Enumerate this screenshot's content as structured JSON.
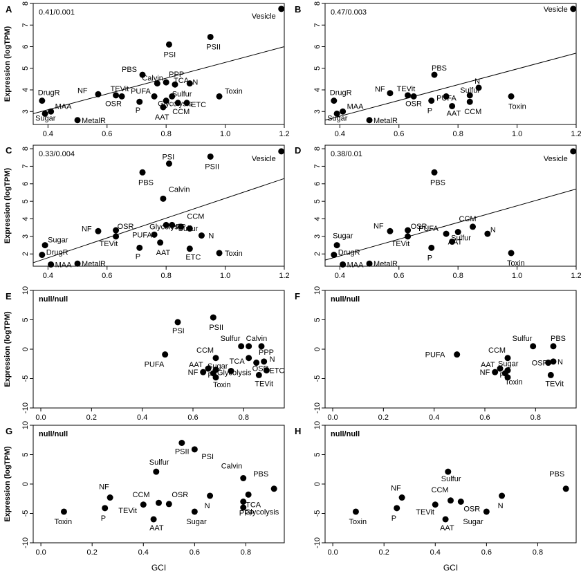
{
  "chart_data": [
    {
      "panel": "A",
      "type": "scatter",
      "annotation": "0.41/0.001",
      "ylabel": "Expression (logTPM)",
      "xlabel": "",
      "xlim": [
        0.35,
        1.2
      ],
      "ylim": [
        2.4,
        8
      ],
      "xticks": [
        0.4,
        0.6,
        0.8,
        1.0,
        1.2
      ],
      "xtick_labels": [
        "0.4",
        "0.6",
        "0.8",
        "1.0",
        "1.2"
      ],
      "yticks": [
        3,
        4,
        5,
        6,
        7,
        8
      ],
      "ytick_labels": [
        "3",
        "4",
        "5",
        "6",
        "7",
        "8"
      ],
      "fit_line": [
        [
          0.35,
          2.9
        ],
        [
          1.2,
          6.0
        ]
      ],
      "points": [
        {
          "label": "Vesicle",
          "x": 1.19,
          "y": 7.75
        },
        {
          "label": "PSI",
          "x": 0.81,
          "y": 6.1
        },
        {
          "label": "PSII",
          "x": 0.95,
          "y": 6.45
        },
        {
          "label": "PBS",
          "x": 0.72,
          "y": 4.7
        },
        {
          "label": "Calvin",
          "x": 0.77,
          "y": 4.3
        },
        {
          "label": "PPP",
          "x": 0.8,
          "y": 4.35
        },
        {
          "label": "TCA",
          "x": 0.83,
          "y": 4.25
        },
        {
          "label": "N",
          "x": 0.88,
          "y": 4.3
        },
        {
          "label": "Toxin",
          "x": 0.98,
          "y": 3.7
        },
        {
          "label": "PUFA",
          "x": 0.76,
          "y": 3.7
        },
        {
          "label": "Sulfur",
          "x": 0.82,
          "y": 3.7
        },
        {
          "label": "ETC",
          "x": 0.87,
          "y": 3.4
        },
        {
          "label": "CCM",
          "x": 0.84,
          "y": 3.4
        },
        {
          "label": "AAT",
          "x": 0.79,
          "y": 3.2
        },
        {
          "label": "Glycolysis",
          "x": 0.8,
          "y": 3.5
        },
        {
          "label": "P",
          "x": 0.71,
          "y": 3.45
        },
        {
          "label": "OSR",
          "x": 0.65,
          "y": 3.7
        },
        {
          "label": "TEVit",
          "x": 0.63,
          "y": 3.75
        },
        {
          "label": "NF",
          "x": 0.57,
          "y": 3.8
        },
        {
          "label": "DrugR",
          "x": 0.38,
          "y": 3.5
        },
        {
          "label": "MAA",
          "x": 0.41,
          "y": 3.0
        },
        {
          "label": "Sugar",
          "x": 0.39,
          "y": 2.9
        },
        {
          "label": "MetalR",
          "x": 0.5,
          "y": 2.6
        }
      ]
    },
    {
      "panel": "B",
      "type": "scatter",
      "annotation": "0.47/0.003",
      "ylabel": "",
      "xlabel": "",
      "xlim": [
        0.35,
        1.2
      ],
      "ylim": [
        2.4,
        8
      ],
      "xticks": [
        0.4,
        0.6,
        0.8,
        1.0,
        1.2
      ],
      "xtick_labels": [
        "0.4",
        "0.6",
        "0.8",
        "1.0",
        "1.2"
      ],
      "yticks": [
        3,
        4,
        5,
        6,
        7,
        8
      ],
      "ytick_labels": [
        "3",
        "4",
        "5",
        "6",
        "7",
        "8"
      ],
      "fit_line": [
        [
          0.35,
          2.6
        ],
        [
          1.2,
          5.7
        ]
      ],
      "points": [
        {
          "label": "Vesicle",
          "x": 1.19,
          "y": 7.75
        },
        {
          "label": "PBS",
          "x": 0.72,
          "y": 4.7
        },
        {
          "label": "N",
          "x": 0.87,
          "y": 4.1
        },
        {
          "label": "Sulfur",
          "x": 0.84,
          "y": 3.75
        },
        {
          "label": "Toxin",
          "x": 0.98,
          "y": 3.7
        },
        {
          "label": "PUFA",
          "x": 0.76,
          "y": 3.7
        },
        {
          "label": "CCM",
          "x": 0.84,
          "y": 3.45
        },
        {
          "label": "AAT",
          "x": 0.78,
          "y": 3.25
        },
        {
          "label": "P",
          "x": 0.71,
          "y": 3.5
        },
        {
          "label": "OSR",
          "x": 0.65,
          "y": 3.7
        },
        {
          "label": "TEVit",
          "x": 0.63,
          "y": 3.75
        },
        {
          "label": "NF",
          "x": 0.57,
          "y": 3.85
        },
        {
          "label": "DrugR",
          "x": 0.38,
          "y": 3.5
        },
        {
          "label": "MAA",
          "x": 0.41,
          "y": 3.0
        },
        {
          "label": "Sugar",
          "x": 0.39,
          "y": 2.9
        },
        {
          "label": "MetalR",
          "x": 0.5,
          "y": 2.6
        }
      ]
    },
    {
      "panel": "C",
      "type": "scatter",
      "annotation": "0.33/0.004",
      "ylabel": "Expression (logTPM)",
      "xlabel": "",
      "xlim": [
        0.35,
        1.2
      ],
      "ylim": [
        1.3,
        8.2
      ],
      "xticks": [
        0.4,
        0.6,
        0.8,
        1.0,
        1.2
      ],
      "xtick_labels": [
        "0.4",
        "0.6",
        "0.8",
        "1.0",
        "1.2"
      ],
      "yticks": [
        2,
        3,
        4,
        5,
        6,
        7,
        8
      ],
      "ytick_labels": [
        "2",
        "3",
        "4",
        "5",
        "6",
        "7",
        "8"
      ],
      "fit_line": [
        [
          0.35,
          1.5
        ],
        [
          1.2,
          6.3
        ]
      ],
      "points": [
        {
          "label": "Vesicle",
          "x": 1.19,
          "y": 7.85
        },
        {
          "label": "PSII",
          "x": 0.95,
          "y": 7.55
        },
        {
          "label": "PSI",
          "x": 0.81,
          "y": 7.15
        },
        {
          "label": "PBS",
          "x": 0.72,
          "y": 6.65
        },
        {
          "label": "Calvin",
          "x": 0.79,
          "y": 5.15
        },
        {
          "label": "CCM",
          "x": 0.88,
          "y": 3.45
        },
        {
          "label": "OSR",
          "x": 0.63,
          "y": 3.35
        },
        {
          "label": "NF",
          "x": 0.57,
          "y": 3.3
        },
        {
          "label": "Glycolysis",
          "x": 0.8,
          "y": 3.65
        },
        {
          "label": "PPP",
          "x": 0.82,
          "y": 3.65
        },
        {
          "label": "Sulfur",
          "x": 0.85,
          "y": 3.55
        },
        {
          "label": "PUFA",
          "x": 0.76,
          "y": 3.1
        },
        {
          "label": "N",
          "x": 0.92,
          "y": 3.05
        },
        {
          "label": "TEVit",
          "x": 0.63,
          "y": 3.0
        },
        {
          "label": "AAT",
          "x": 0.78,
          "y": 2.65
        },
        {
          "label": "P",
          "x": 0.71,
          "y": 2.35
        },
        {
          "label": "ETC",
          "x": 0.88,
          "y": 2.3
        },
        {
          "label": "Toxin",
          "x": 0.98,
          "y": 2.05
        },
        {
          "label": "Sugar",
          "x": 0.39,
          "y": 2.5
        },
        {
          "label": "DrugR",
          "x": 0.38,
          "y": 1.95
        },
        {
          "label": "MAA",
          "x": 0.41,
          "y": 1.4
        },
        {
          "label": "MetalR",
          "x": 0.5,
          "y": 1.45
        }
      ]
    },
    {
      "panel": "D",
      "type": "scatter",
      "annotation": "0.38/0.01",
      "ylabel": "",
      "xlabel": "",
      "xlim": [
        0.35,
        1.2
      ],
      "ylim": [
        1.3,
        8.2
      ],
      "xticks": [
        0.4,
        0.6,
        0.8,
        1.0,
        1.2
      ],
      "xtick_labels": [
        "0.4",
        "0.6",
        "0.8",
        "1.0",
        "1.2"
      ],
      "yticks": [
        2,
        3,
        4,
        5,
        6,
        7,
        8
      ],
      "ytick_labels": [
        "2",
        "3",
        "4",
        "5",
        "6",
        "7",
        "8"
      ],
      "fit_line": [
        [
          0.35,
          1.65
        ],
        [
          1.2,
          5.7
        ]
      ],
      "points": [
        {
          "label": "Vesicle",
          "x": 1.19,
          "y": 7.85
        },
        {
          "label": "PBS",
          "x": 0.72,
          "y": 6.65
        },
        {
          "label": "CCM",
          "x": 0.85,
          "y": 3.55
        },
        {
          "label": "N",
          "x": 0.9,
          "y": 3.15
        },
        {
          "label": "PUFA",
          "x": 0.76,
          "y": 3.15
        },
        {
          "label": "OSR",
          "x": 0.63,
          "y": 3.35
        },
        {
          "label": "NF",
          "x": 0.57,
          "y": 3.3
        },
        {
          "label": "TEVit",
          "x": 0.63,
          "y": 3.0
        },
        {
          "label": "Sulfur",
          "x": 0.8,
          "y": 3.25
        },
        {
          "label": "AAT",
          "x": 0.78,
          "y": 2.7
        },
        {
          "label": "P",
          "x": 0.71,
          "y": 2.35
        },
        {
          "label": "Toxin",
          "x": 0.98,
          "y": 2.05
        },
        {
          "label": "Sugar",
          "x": 0.39,
          "y": 2.5
        },
        {
          "label": "DrugR",
          "x": 0.38,
          "y": 1.95
        },
        {
          "label": "MAA",
          "x": 0.41,
          "y": 1.4
        },
        {
          "label": "MetalR",
          "x": 0.5,
          "y": 1.45
        }
      ]
    },
    {
      "panel": "E",
      "type": "scatter",
      "annotation": "null/null",
      "ylabel": "Expression (logTPM)",
      "xlabel": "",
      "xlim": [
        -0.03,
        0.96
      ],
      "ylim": [
        -10,
        10
      ],
      "xticks": [
        0.0,
        0.2,
        0.4,
        0.6,
        0.8
      ],
      "xtick_labels": [
        "0.0",
        "0.2",
        "0.4",
        "0.6",
        "0.8"
      ],
      "yticks": [
        -10,
        -5,
        0,
        5,
        10
      ],
      "ytick_labels": [
        "-10",
        "-5",
        "0",
        "5",
        "10"
      ],
      "points": [
        {
          "label": "PSI",
          "x": 0.54,
          "y": 4.6
        },
        {
          "label": "PSII",
          "x": 0.68,
          "y": 5.4
        },
        {
          "label": "Sulfur",
          "x": 0.79,
          "y": 0.5
        },
        {
          "label": "Calvin",
          "x": 0.82,
          "y": 0.5
        },
        {
          "label": "PPP",
          "x": 0.87,
          "y": 0.5
        },
        {
          "label": "N",
          "x": 0.88,
          "y": -2.1
        },
        {
          "label": "CCM",
          "x": 0.69,
          "y": -1.5
        },
        {
          "label": "TCA",
          "x": 0.82,
          "y": -1.5
        },
        {
          "label": "PUFA",
          "x": 0.49,
          "y": -0.9
        },
        {
          "label": "AAT",
          "x": 0.66,
          "y": -3.3
        },
        {
          "label": "Sugar",
          "x": 0.69,
          "y": -3.5
        },
        {
          "label": "Glycolysis",
          "x": 0.75,
          "y": -3.7
        },
        {
          "label": "OSR",
          "x": 0.85,
          "y": -2.3
        },
        {
          "label": "ETC",
          "x": 0.89,
          "y": -3.6
        },
        {
          "label": "NF",
          "x": 0.64,
          "y": -3.9
        },
        {
          "label": "P",
          "x": 0.68,
          "y": -4.1
        },
        {
          "label": "Toxin",
          "x": 0.69,
          "y": -4.8
        },
        {
          "label": "TEVit",
          "x": 0.86,
          "y": -4.4
        }
      ]
    },
    {
      "panel": "F",
      "type": "scatter",
      "annotation": "null/null",
      "ylabel": "",
      "xlabel": "",
      "xlim": [
        -0.03,
        0.96
      ],
      "ylim": [
        -10,
        10
      ],
      "xticks": [
        0.0,
        0.2,
        0.4,
        0.6,
        0.8
      ],
      "xtick_labels": [
        "0.0",
        "0.2",
        "0.4",
        "0.6",
        "0.8"
      ],
      "yticks": [
        -10,
        -5,
        0,
        5,
        10
      ],
      "ytick_labels": [
        "-10",
        "-5",
        "0",
        "5",
        "10"
      ],
      "points": [
        {
          "label": "Sulfur",
          "x": 0.79,
          "y": 0.5
        },
        {
          "label": "PBS",
          "x": 0.87,
          "y": 0.5
        },
        {
          "label": "PUFA",
          "x": 0.49,
          "y": -0.9
        },
        {
          "label": "CCM",
          "x": 0.69,
          "y": -1.5
        },
        {
          "label": "AAT",
          "x": 0.66,
          "y": -3.3
        },
        {
          "label": "Sugar",
          "x": 0.69,
          "y": -3.6
        },
        {
          "label": "OSR",
          "x": 0.85,
          "y": -2.3
        },
        {
          "label": "N",
          "x": 0.87,
          "y": -2.1
        },
        {
          "label": "NF",
          "x": 0.64,
          "y": -3.9
        },
        {
          "label": "P",
          "x": 0.68,
          "y": -4.1
        },
        {
          "label": "Toxin",
          "x": 0.69,
          "y": -4.8
        },
        {
          "label": "TEVit",
          "x": 0.86,
          "y": -4.4
        }
      ]
    },
    {
      "panel": "G",
      "type": "scatter",
      "annotation": "null/null",
      "ylabel": "Expression (logTPM)",
      "xlabel": "GCI",
      "xlim": [
        -0.03,
        0.95
      ],
      "ylim": [
        -10,
        10
      ],
      "xticks": [
        0.0,
        0.2,
        0.4,
        0.6,
        0.8
      ],
      "xtick_labels": [
        "0.0",
        "0.2",
        "0.4",
        "0.6",
        "0.8"
      ],
      "yticks": [
        -10,
        -5,
        0,
        5,
        10
      ],
      "ytick_labels": [
        "-10",
        "-5",
        "0",
        "5",
        "10"
      ],
      "points": [
        {
          "label": "PSII",
          "x": 0.55,
          "y": 7.0
        },
        {
          "label": "PSI",
          "x": 0.6,
          "y": 5.9
        },
        {
          "label": "Sulfur",
          "x": 0.45,
          "y": 2.1
        },
        {
          "label": "Calvin",
          "x": 0.79,
          "y": 1.0
        },
        {
          "label": "PBS",
          "x": 0.91,
          "y": -0.8
        },
        {
          "label": "NF",
          "x": 0.27,
          "y": -2.3
        },
        {
          "label": "CCM",
          "x": 0.46,
          "y": -3.2
        },
        {
          "label": "OSR",
          "x": 0.5,
          "y": -3.4
        },
        {
          "label": "N",
          "x": 0.66,
          "y": -2.0
        },
        {
          "label": "TCA",
          "x": 0.81,
          "y": -1.8
        },
        {
          "label": "PPP",
          "x": 0.79,
          "y": -3.0
        },
        {
          "label": "Glycolysis",
          "x": 0.79,
          "y": -4.0
        },
        {
          "label": "TEVit",
          "x": 0.4,
          "y": -3.5
        },
        {
          "label": "P",
          "x": 0.25,
          "y": -4.1
        },
        {
          "label": "AAT",
          "x": 0.44,
          "y": -6.0
        },
        {
          "label": "Sugar",
          "x": 0.6,
          "y": -4.7
        },
        {
          "label": "Toxin",
          "x": 0.09,
          "y": -4.7
        }
      ]
    },
    {
      "panel": "H",
      "type": "scatter",
      "annotation": "null/null",
      "ylabel": "",
      "xlabel": "GCI",
      "xlim": [
        -0.03,
        0.95
      ],
      "ylim": [
        -10,
        10
      ],
      "xticks": [
        0.0,
        0.2,
        0.4,
        0.6,
        0.8
      ],
      "xtick_labels": [
        "0.0",
        "0.2",
        "0.4",
        "0.6",
        "0.8"
      ],
      "yticks": [
        -10,
        -5,
        0,
        5,
        10
      ],
      "ytick_labels": [
        "-10",
        "-5",
        "0",
        "5",
        "10"
      ],
      "points": [
        {
          "label": "Sulfur",
          "x": 0.45,
          "y": 2.1
        },
        {
          "label": "PBS",
          "x": 0.91,
          "y": -0.8
        },
        {
          "label": "NF",
          "x": 0.27,
          "y": -2.3
        },
        {
          "label": "CCM",
          "x": 0.46,
          "y": -2.8
        },
        {
          "label": "OSR",
          "x": 0.5,
          "y": -3.0
        },
        {
          "label": "N",
          "x": 0.66,
          "y": -2.0
        },
        {
          "label": "TEVit",
          "x": 0.4,
          "y": -3.5
        },
        {
          "label": "P",
          "x": 0.25,
          "y": -4.1
        },
        {
          "label": "AAT",
          "x": 0.44,
          "y": -6.0
        },
        {
          "label": "Sugar",
          "x": 0.6,
          "y": -4.7
        },
        {
          "label": "Toxin",
          "x": 0.09,
          "y": -4.7
        }
      ]
    }
  ]
}
